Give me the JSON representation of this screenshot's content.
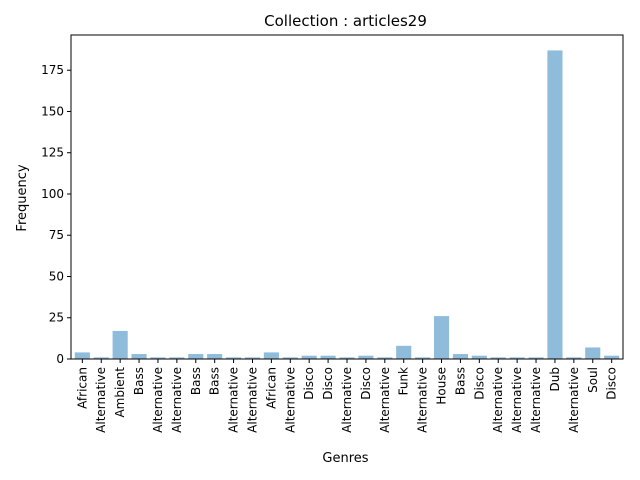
{
  "chart_data": {
    "type": "bar",
    "title": "Collection : articles29",
    "xlabel": "Genres",
    "ylabel": "Frequency",
    "categories": [
      "African",
      "Alternative",
      "Ambient",
      "Bass",
      "Alternative",
      "Alternative",
      "Bass",
      "Bass",
      "Alternative",
      "Alternative",
      "African",
      "Alternative",
      "Disco",
      "Disco",
      "Alternative",
      "Disco",
      "Alternative",
      "Funk",
      "Alternative",
      "House",
      "Bass",
      "Disco",
      "Alternative",
      "Alternative",
      "Alternative",
      "Dub",
      "Alternative",
      "Soul",
      "Disco"
    ],
    "values": [
      4,
      1,
      17,
      3,
      1,
      1,
      3,
      3,
      1,
      1,
      4,
      1,
      2,
      2,
      1,
      2,
      1,
      8,
      1,
      26,
      3,
      2,
      1,
      1,
      1,
      187,
      1,
      7,
      2
    ],
    "ylim": [
      0,
      196.35
    ],
    "yticks": [
      0,
      25,
      50,
      75,
      100,
      125,
      150,
      175
    ],
    "bar_color": "#8fbcdb",
    "grid": false
  }
}
